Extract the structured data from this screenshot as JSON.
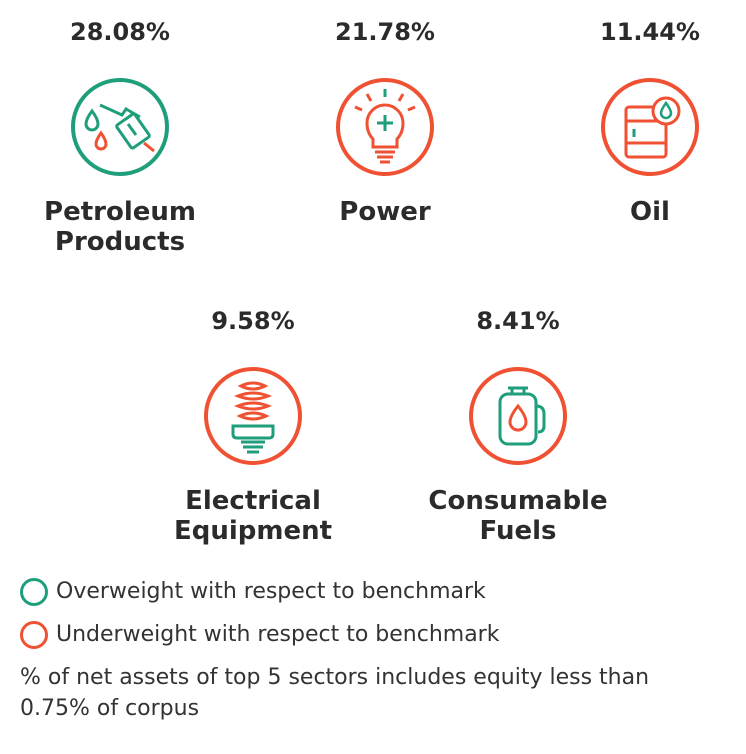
{
  "colors": {
    "overweight": "#1f9e7c",
    "underweight": "#ef5132"
  },
  "sectors": [
    {
      "pct": "28.08%",
      "name": "Petroleum\nProducts",
      "weight": "overweight",
      "icon": "fuel-nozzle-icon"
    },
    {
      "pct": "21.78%",
      "name": "Power",
      "weight": "underweight",
      "icon": "light-bulb-icon"
    },
    {
      "pct": "11.44%",
      "name": "Oil",
      "weight": "underweight",
      "icon": "oil-barrel-icon"
    },
    {
      "pct": "9.58%",
      "name": "Electrical\nEquipment",
      "weight": "underweight",
      "icon": "cfl-bulb-icon"
    },
    {
      "pct": "8.41%",
      "name": "Consumable\nFuels",
      "weight": "underweight",
      "icon": "gas-cylinder-icon"
    }
  ],
  "legend": {
    "overweight_label": "Overweight with respect to benchmark",
    "underweight_label": "Underweight with respect to benchmark"
  },
  "footnote": "% of net assets of top 5 sectors includes equity less than 0.75% of corpus"
}
